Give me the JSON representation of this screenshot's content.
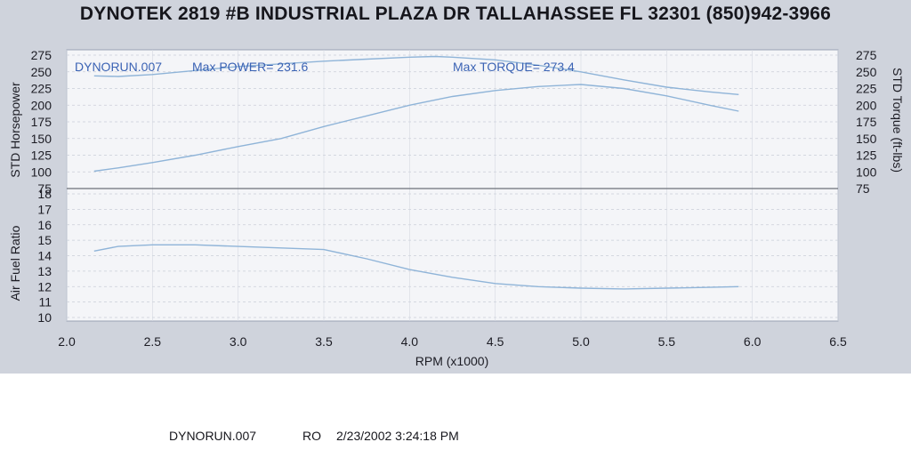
{
  "header": "DYNOTEK 2819 #B INDUSTRIAL PLAZA DR TALLAHASSEE FL 32301 (850)942-3966",
  "annotations": {
    "run": "DYNORUN.007",
    "max_power": "Max POWER= 231.6",
    "max_torque": "Max TORQUE= 273.4"
  },
  "footer": {
    "run": "DYNORUN.007",
    "operator": "RO",
    "datetime": "2/23/2002 3:24:18 PM"
  },
  "colors": {
    "line": "#8fb4d8",
    "plot_bg": "#f4f5f8",
    "sheet_bg": "#cfd3dc",
    "annotation": "#3b63b4"
  },
  "chart_data": [
    {
      "type": "line",
      "title": "",
      "xlabel": "RPM (x1000)",
      "ylabel": "STD Horsepower",
      "y2label": "STD Torque (ft-lbs)",
      "xlim": [
        2.0,
        6.5
      ],
      "ylim": [
        75,
        275
      ],
      "x_ticks": [
        "2.0",
        "2.5",
        "3.0",
        "3.5",
        "4.0",
        "4.5",
        "5.0",
        "5.5",
        "6.0",
        "6.5"
      ],
      "y_ticks": [
        "75",
        "100",
        "125",
        "150",
        "175",
        "200",
        "225",
        "250",
        "275"
      ],
      "y2_ticks": [
        "75",
        "100",
        "125",
        "150",
        "175",
        "200",
        "225",
        "250",
        "275"
      ],
      "grid": true,
      "series": [
        {
          "name": "Power",
          "x": [
            2.16,
            2.3,
            2.5,
            2.75,
            3.0,
            3.25,
            3.5,
            3.75,
            4.0,
            4.25,
            4.5,
            4.75,
            5.0,
            5.25,
            5.5,
            5.75,
            5.92
          ],
          "y": [
            101,
            106,
            114,
            125,
            138,
            150,
            168,
            184,
            200,
            213,
            222,
            228,
            231,
            225,
            214,
            200,
            191
          ]
        },
        {
          "name": "Torque",
          "x": [
            2.16,
            2.3,
            2.5,
            2.75,
            3.0,
            3.25,
            3.5,
            3.75,
            4.0,
            4.15,
            4.25,
            4.5,
            4.75,
            5.0,
            5.25,
            5.5,
            5.75,
            5.92
          ],
          "y": [
            244,
            243,
            246,
            252,
            258,
            262,
            266,
            269,
            272,
            273,
            272,
            268,
            260,
            250,
            238,
            227,
            220,
            216
          ]
        }
      ]
    },
    {
      "type": "line",
      "title": "",
      "xlabel": "RPM (x1000)",
      "ylabel": "Air Fuel Ratio",
      "xlim": [
        2.0,
        6.5
      ],
      "ylim": [
        10,
        18
      ],
      "y_ticks": [
        "10",
        "11",
        "12",
        "13",
        "14",
        "15",
        "16",
        "17",
        "18"
      ],
      "grid": true,
      "series": [
        {
          "name": "Air Fuel Ratio",
          "x": [
            2.16,
            2.3,
            2.5,
            2.75,
            3.0,
            3.25,
            3.5,
            3.75,
            4.0,
            4.25,
            4.5,
            4.75,
            5.0,
            5.25,
            5.5,
            5.75,
            5.92
          ],
          "y": [
            14.3,
            14.6,
            14.7,
            14.7,
            14.6,
            14.5,
            14.4,
            13.8,
            13.1,
            12.6,
            12.2,
            12.0,
            11.9,
            11.85,
            11.9,
            11.95,
            12.0
          ]
        }
      ]
    }
  ]
}
